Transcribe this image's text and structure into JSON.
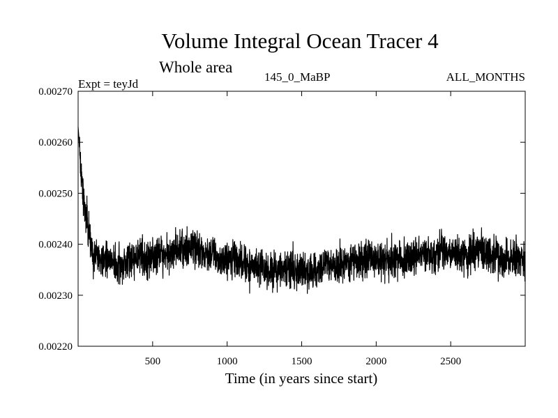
{
  "chart_data": {
    "type": "line",
    "title": "Volume Integral Ocean Tracer 4",
    "subtitle": "Whole area",
    "experiment_label": "Expt = teyJd",
    "run_label": "145_0_MaBP",
    "period_label": "ALL_MONTHS",
    "xlabel": "Time (in years since start)",
    "ylabel": "",
    "xlim": [
      0,
      3000
    ],
    "ylim": [
      0.0022,
      0.0027
    ],
    "xticks": [
      500,
      1000,
      1500,
      2000,
      2500
    ],
    "xtick_labels": [
      "500",
      "1000",
      "1500",
      "2000",
      "2500"
    ],
    "yticks": [
      0.0022,
      0.0023,
      0.0024,
      0.0025,
      0.0026,
      0.0027
    ],
    "ytick_labels": [
      "0.00220",
      "0.00230",
      "0.00240",
      "0.00250",
      "0.00260",
      "0.00270"
    ],
    "grid": false,
    "series": [
      {
        "name": "Volume Integral Ocean Tracer 4",
        "x": [
          0,
          5,
          10,
          20,
          30,
          40,
          50,
          60,
          70,
          80,
          90,
          100,
          120,
          150,
          200,
          250,
          300,
          350,
          400,
          450,
          500,
          550,
          600,
          650,
          700,
          750,
          800,
          850,
          900,
          950,
          1000,
          1050,
          1100,
          1150,
          1200,
          1250,
          1300,
          1350,
          1400,
          1450,
          1500,
          1550,
          1600,
          1650,
          1700,
          1750,
          1800,
          1850,
          1900,
          1950,
          2000,
          2050,
          2100,
          2150,
          2200,
          2250,
          2300,
          2350,
          2400,
          2450,
          2500,
          2550,
          2600,
          2650,
          2700,
          2750,
          2800,
          2850,
          2900,
          2950,
          3000
        ],
        "values": [
          0.00263,
          0.00261,
          0.00258,
          0.00254,
          0.00251,
          0.00248,
          0.00246,
          0.00244,
          0.00242,
          0.00241,
          0.00239,
          0.00238,
          0.00238,
          0.00237,
          0.00237,
          0.00236,
          0.00236,
          0.00237,
          0.00238,
          0.00237,
          0.00238,
          0.00238,
          0.00238,
          0.00239,
          0.00239,
          0.00239,
          0.00239,
          0.00238,
          0.00238,
          0.00237,
          0.00237,
          0.00237,
          0.00236,
          0.00236,
          0.00236,
          0.00235,
          0.00235,
          0.00235,
          0.00235,
          0.00235,
          0.00235,
          0.00235,
          0.00235,
          0.00236,
          0.00236,
          0.00236,
          0.00236,
          0.00237,
          0.00237,
          0.00237,
          0.00237,
          0.00237,
          0.00237,
          0.00237,
          0.00237,
          0.00237,
          0.00238,
          0.00238,
          0.00238,
          0.00238,
          0.00238,
          0.00238,
          0.00238,
          0.00238,
          0.00239,
          0.00238,
          0.00238,
          0.00237,
          0.00237,
          0.00237,
          0.00237
        ],
        "noise_amplitude": 6e-05,
        "samples": 3000,
        "noise_seed": 2024,
        "color": "#000000"
      }
    ]
  }
}
